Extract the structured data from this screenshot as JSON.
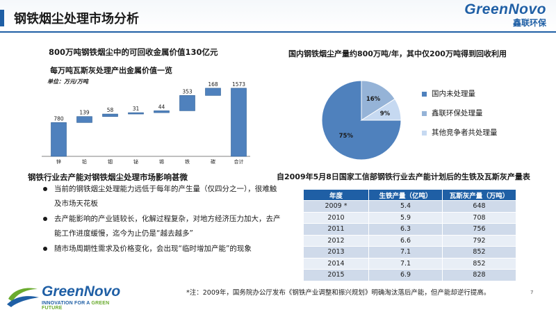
{
  "header": {
    "title": "钢铁烟尘处理市场分析",
    "brand_en": "GreenNovo",
    "brand_cn": "鑫联环保"
  },
  "left": {
    "title1": "800万吨钢铁烟尘中的可回收金属价值130亿元",
    "title2": "每万吨瓦斯灰处理产出金属价值一览",
    "unit": "单位：万元/万吨"
  },
  "impact": {
    "title": "钢铁行业去产能对钢铁烟尘处理市场影响甚微",
    "bullets": [
      "当前的钢铁烟尘处理能力远低于每年的产生量（仅四分之一），很难触及市场天花板",
      "去产能影响的产业链较长，化解过程复杂，对地方经济压力加大，去产能工作进度缓慢，迄今为止仍是“越去越多”",
      "随市场周期性需求及价格变化，会出现“临时增加产能”的现象"
    ]
  },
  "pie_section": {
    "title": "国内钢铁烟尘产量约800万吨/年，其中仅200万吨得到回收利用"
  },
  "table_section": {
    "title": "自2009年5月8日国家工信部钢铁行业去产能计划后的生铁及瓦斯灰产量表",
    "headers": [
      "年度",
      "生铁产量（亿吨）",
      "瓦斯灰产量（万吨）"
    ],
    "rows": [
      [
        "2009 *",
        "5.4",
        "648"
      ],
      [
        "2010",
        "5.9",
        "708"
      ],
      [
        "2011",
        "6.3",
        "756"
      ],
      [
        "2012",
        "6.6",
        "792"
      ],
      [
        "2013",
        "7.1",
        "852"
      ],
      [
        "2014",
        "7.1",
        "852"
      ],
      [
        "2015",
        "6.9",
        "828"
      ]
    ]
  },
  "footnote": "*注：2009年，国务院办公厅发布《钢铁产业调整和振兴规划》明确淘汰落后产能，但产能却逆行提高。",
  "page_number": "7",
  "logo_bottom": {
    "en": "GreenNovo",
    "tag_a": "INNOVATION FOR A ",
    "tag_b": "GREEN FUTURE"
  },
  "colors": {
    "primary": "#1f5fa5",
    "bar": "#4f81bd",
    "pie_main": "#4f81bd",
    "pie_mid": "#95b3d7",
    "pie_light": "#c6d9f1",
    "accent_green": "#6aab2e"
  },
  "chart_data": [
    {
      "type": "bar",
      "subtype": "waterfall",
      "categories": [
        "锌",
        "铅",
        "铟",
        "铋",
        "锡",
        "铁",
        "碳",
        "合计"
      ],
      "values": [
        780,
        139,
        58,
        31,
        44,
        353,
        168,
        1573
      ],
      "total_index": 7,
      "ylim": [
        0,
        1700
      ],
      "grid": false
    },
    {
      "type": "pie",
      "labels": [
        "国内未处理量",
        "鑫联环保处理量",
        "其他竞争者共处理量"
      ],
      "values": [
        75,
        16,
        9
      ],
      "value_labels": [
        "75%",
        "16%",
        "9%"
      ],
      "legend": "right"
    }
  ]
}
